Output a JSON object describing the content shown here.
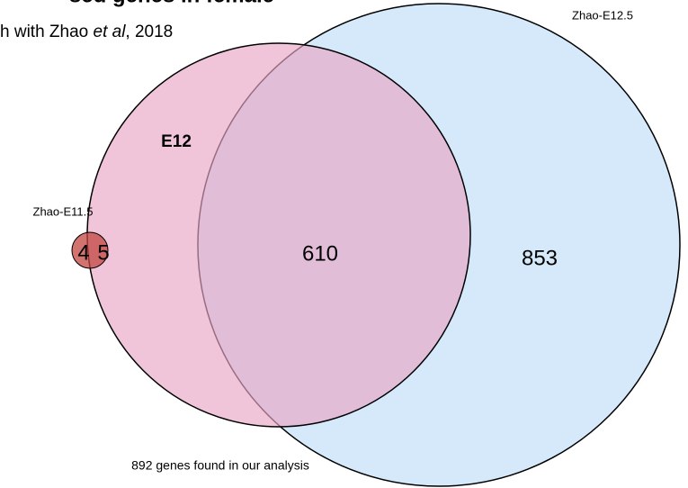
{
  "header": {
    "title": "sed genes in female",
    "subtitle": [
      "h with Zhao ",
      "et al",
      ", 2018"
    ]
  },
  "sets": [
    {
      "label": "Zhao-E12.5",
      "count": "853"
    },
    {
      "label": "E12",
      "count": "610"
    },
    {
      "label": "Zhao-E11.5",
      "count": "4"
    }
  ],
  "overlap_small": "5",
  "footnote": "892 genes found in our analysis"
}
